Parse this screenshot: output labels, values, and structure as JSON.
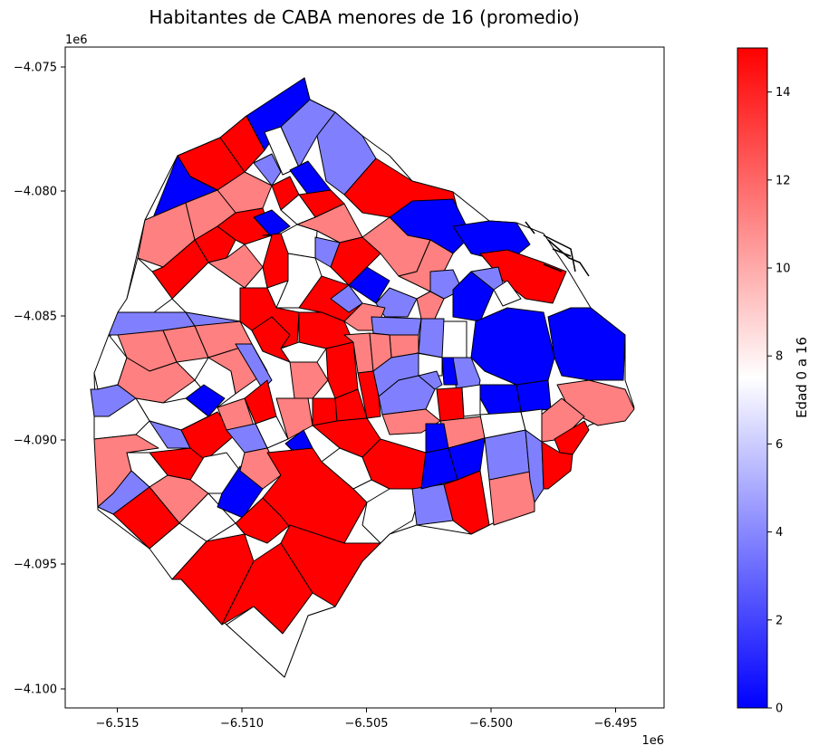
{
  "chart_data": {
    "type": "choropleth",
    "title": "Habitantes de CABA menores de 16 (promedio)",
    "x_axis": {
      "ticks": [
        -6.515,
        -6.51,
        -6.505,
        -6.5,
        -6.495
      ],
      "tick_labels": [
        "−6.515",
        "−6.510",
        "−6.505",
        "−6.500",
        "−6.495"
      ],
      "offset_label": "1e6",
      "range": [
        -6.5168,
        -6.4927
      ]
    },
    "y_axis": {
      "ticks": [
        -4.075,
        -4.08,
        -4.085,
        -4.09,
        -4.095,
        -4.1
      ],
      "tick_labels": [
        "−4.075",
        "−4.080",
        "−4.085",
        "−4.090",
        "−4.095",
        "−4.100"
      ],
      "offset_label": "1e6",
      "range": [
        -4.1007,
        -4.0733
      ]
    },
    "colorbar": {
      "label": "Edad 0 a 16",
      "range": [
        0,
        15
      ],
      "ticks": [
        0,
        2,
        4,
        6,
        8,
        10,
        12,
        14
      ],
      "colormap": "bwr",
      "colors": {
        "low": "#0000ff",
        "mid": "#ffffff",
        "high": "#ff0000"
      }
    },
    "grid": false
  }
}
